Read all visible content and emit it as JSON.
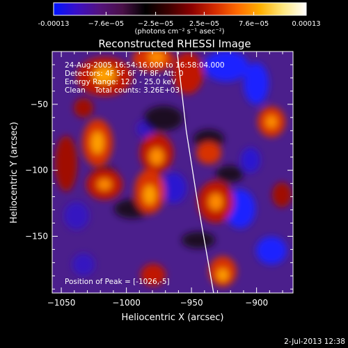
{
  "colorbar": {
    "colors": [
      "#0014ff",
      "#3a0fc8",
      "#54127e",
      "#4a1048",
      "#000000",
      "#3c0000",
      "#8b0000",
      "#d42a00",
      "#ff6a00",
      "#ffb000",
      "#ffe880",
      "#ffffff"
    ],
    "range": [
      -0.00013,
      0.00013
    ],
    "ticks": [
      {
        "value": -0.00013,
        "label": "-0.00013"
      },
      {
        "value": -7.6e-05,
        "label": "−7.6e−05"
      },
      {
        "value": -2.5e-05,
        "label": "−2.5e−05"
      },
      {
        "value": 2.5e-05,
        "label": "2.5e−05"
      },
      {
        "value": 7.6e-05,
        "label": "7.6e−05"
      },
      {
        "value": 0.00013,
        "label": "0.00013"
      }
    ],
    "units": "(photons cm⁻² s⁻¹ asec⁻²)"
  },
  "chart_data": {
    "type": "heatmap",
    "title": "Reconstructed RHESSI Image",
    "xlabel": "Heliocentric X (arcsec)",
    "ylabel": "Heliocentric Y (arcsec)",
    "xlim": [
      -1057,
      -872
    ],
    "ylim": [
      -193,
      -10
    ],
    "x_ticks": [
      {
        "value": -1050,
        "label": "−1050"
      },
      {
        "value": -1000,
        "label": "−1000"
      },
      {
        "value": -950,
        "label": "−950"
      },
      {
        "value": -900,
        "label": "−900"
      }
    ],
    "y_ticks": [
      {
        "value": -50,
        "label": "−50"
      },
      {
        "value": -100,
        "label": "−100"
      },
      {
        "value": -150,
        "label": "−150"
      }
    ],
    "info_lines": [
      "24-Aug-2005 16:54:16.000 to 16:58:04.000",
      "Detectors: 4F 5F 6F 7F 8F, Att: 0",
      "Energy Range: 12.0 - 25.0 keV",
      "Clean    Total counts: 3.26E+03"
    ],
    "peak_label": "Position of Peak = [-1026,-5]",
    "limb_line": [
      [
        -961,
        -10
      ],
      [
        -954,
        -70
      ],
      [
        -946,
        -120
      ],
      [
        -938,
        -165
      ],
      [
        -933,
        -193
      ]
    ]
  },
  "footer": {
    "date": "2-Jul-2013 12:38"
  }
}
